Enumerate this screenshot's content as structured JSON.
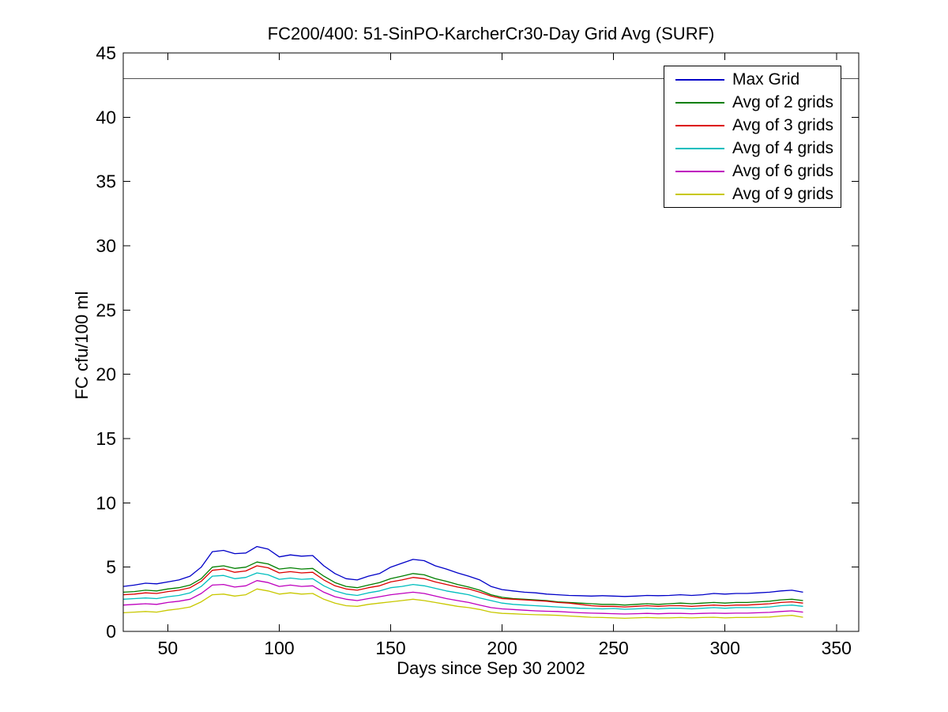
{
  "chart_data": {
    "type": "line",
    "title": "FC200/400: 51-SinPO-KarcherCr30-Day Grid Avg (SURF)",
    "xlabel": "Days since Sep 30 2002",
    "ylabel": "FC cfu/100 ml",
    "xlim": [
      30,
      360
    ],
    "ylim": [
      0,
      45
    ],
    "xticks": [
      50,
      100,
      150,
      200,
      250,
      300,
      350
    ],
    "yticks": [
      0,
      5,
      10,
      15,
      20,
      25,
      30,
      35,
      40,
      45
    ],
    "grid": false,
    "legend_position": "top-right",
    "axis_color": "#000000",
    "threshold_line": {
      "y": 43,
      "color": "#505050"
    },
    "x": [
      30,
      35,
      40,
      45,
      50,
      55,
      60,
      65,
      70,
      75,
      80,
      85,
      90,
      95,
      100,
      105,
      110,
      115,
      120,
      125,
      130,
      135,
      140,
      145,
      150,
      155,
      160,
      165,
      170,
      175,
      180,
      185,
      190,
      195,
      200,
      205,
      210,
      215,
      220,
      225,
      230,
      235,
      240,
      245,
      250,
      255,
      260,
      265,
      270,
      275,
      280,
      285,
      290,
      295,
      300,
      305,
      310,
      315,
      320,
      325,
      330,
      335
    ],
    "series": [
      {
        "name": "Max Grid",
        "color": "#0000c8",
        "values": [
          3.5,
          3.6,
          3.75,
          3.7,
          3.85,
          4.0,
          4.3,
          5.0,
          6.2,
          6.3,
          6.05,
          6.1,
          6.6,
          6.4,
          5.8,
          5.95,
          5.85,
          5.9,
          5.1,
          4.5,
          4.1,
          4.0,
          4.3,
          4.5,
          5.0,
          5.3,
          5.6,
          5.5,
          5.1,
          4.85,
          4.55,
          4.3,
          4.0,
          3.5,
          3.25,
          3.15,
          3.05,
          3.0,
          2.9,
          2.85,
          2.8,
          2.78,
          2.75,
          2.78,
          2.75,
          2.72,
          2.75,
          2.8,
          2.78,
          2.8,
          2.85,
          2.8,
          2.85,
          2.95,
          2.9,
          2.95,
          2.95,
          3.0,
          3.05,
          3.15,
          3.2,
          3.05
        ]
      },
      {
        "name": "Avg of 2 grids",
        "color": "#007f00",
        "values": [
          3.05,
          3.1,
          3.2,
          3.15,
          3.3,
          3.4,
          3.6,
          4.1,
          5.0,
          5.1,
          4.9,
          5.0,
          5.4,
          5.25,
          4.85,
          4.95,
          4.85,
          4.9,
          4.3,
          3.8,
          3.5,
          3.4,
          3.6,
          3.8,
          4.1,
          4.3,
          4.5,
          4.4,
          4.1,
          3.9,
          3.65,
          3.45,
          3.2,
          2.85,
          2.65,
          2.55,
          2.5,
          2.45,
          2.4,
          2.3,
          2.25,
          2.2,
          2.15,
          2.1,
          2.1,
          2.05,
          2.1,
          2.15,
          2.1,
          2.15,
          2.2,
          2.15,
          2.2,
          2.25,
          2.2,
          2.25,
          2.25,
          2.3,
          2.35,
          2.45,
          2.5,
          2.4
        ]
      },
      {
        "name": "Avg of 3 grids",
        "color": "#dc0000",
        "values": [
          2.85,
          2.9,
          3.0,
          2.95,
          3.1,
          3.2,
          3.4,
          3.9,
          4.75,
          4.85,
          4.6,
          4.7,
          5.1,
          4.95,
          4.55,
          4.65,
          4.55,
          4.6,
          4.0,
          3.55,
          3.3,
          3.2,
          3.4,
          3.55,
          3.85,
          4.0,
          4.2,
          4.1,
          3.85,
          3.65,
          3.45,
          3.3,
          3.05,
          2.75,
          2.55,
          2.5,
          2.45,
          2.4,
          2.35,
          2.25,
          2.2,
          2.1,
          2.0,
          1.95,
          1.95,
          1.9,
          1.95,
          2.0,
          1.95,
          2.0,
          2.0,
          1.95,
          2.0,
          2.05,
          2.0,
          2.05,
          2.05,
          2.1,
          2.15,
          2.25,
          2.3,
          2.2
        ]
      },
      {
        "name": "Avg of 4 grids",
        "color": "#00bebe",
        "values": [
          2.5,
          2.55,
          2.6,
          2.55,
          2.7,
          2.8,
          3.0,
          3.5,
          4.3,
          4.35,
          4.1,
          4.2,
          4.55,
          4.4,
          4.05,
          4.15,
          4.05,
          4.1,
          3.55,
          3.15,
          2.9,
          2.8,
          3.0,
          3.15,
          3.4,
          3.5,
          3.65,
          3.55,
          3.35,
          3.15,
          3.0,
          2.85,
          2.6,
          2.4,
          2.2,
          2.1,
          2.05,
          2.0,
          1.95,
          1.9,
          1.85,
          1.8,
          1.78,
          1.75,
          1.78,
          1.72,
          1.75,
          1.8,
          1.75,
          1.8,
          1.8,
          1.75,
          1.8,
          1.85,
          1.8,
          1.85,
          1.85,
          1.85,
          1.9,
          2.0,
          2.05,
          1.95
        ]
      },
      {
        "name": "Avg of 6 grids",
        "color": "#be00be",
        "values": [
          2.05,
          2.1,
          2.15,
          2.1,
          2.25,
          2.35,
          2.5,
          2.95,
          3.6,
          3.65,
          3.45,
          3.55,
          3.95,
          3.8,
          3.5,
          3.6,
          3.5,
          3.55,
          3.05,
          2.7,
          2.5,
          2.4,
          2.55,
          2.7,
          2.85,
          2.95,
          3.05,
          2.95,
          2.75,
          2.55,
          2.4,
          2.25,
          2.05,
          1.85,
          1.75,
          1.7,
          1.65,
          1.6,
          1.57,
          1.55,
          1.5,
          1.45,
          1.42,
          1.4,
          1.38,
          1.35,
          1.38,
          1.4,
          1.37,
          1.4,
          1.4,
          1.38,
          1.4,
          1.42,
          1.4,
          1.42,
          1.42,
          1.45,
          1.48,
          1.55,
          1.6,
          1.5
        ]
      },
      {
        "name": "Avg of 9 grids",
        "color": "#c8c800",
        "values": [
          1.45,
          1.5,
          1.55,
          1.5,
          1.65,
          1.75,
          1.9,
          2.3,
          2.85,
          2.9,
          2.75,
          2.85,
          3.3,
          3.15,
          2.9,
          3.0,
          2.9,
          2.95,
          2.5,
          2.2,
          2.0,
          1.95,
          2.1,
          2.2,
          2.3,
          2.4,
          2.5,
          2.4,
          2.25,
          2.1,
          1.95,
          1.85,
          1.7,
          1.5,
          1.4,
          1.37,
          1.33,
          1.3,
          1.28,
          1.25,
          1.2,
          1.15,
          1.1,
          1.08,
          1.05,
          1.02,
          1.05,
          1.08,
          1.05,
          1.05,
          1.08,
          1.05,
          1.08,
          1.1,
          1.05,
          1.08,
          1.08,
          1.1,
          1.12,
          1.2,
          1.25,
          1.1
        ]
      }
    ]
  }
}
